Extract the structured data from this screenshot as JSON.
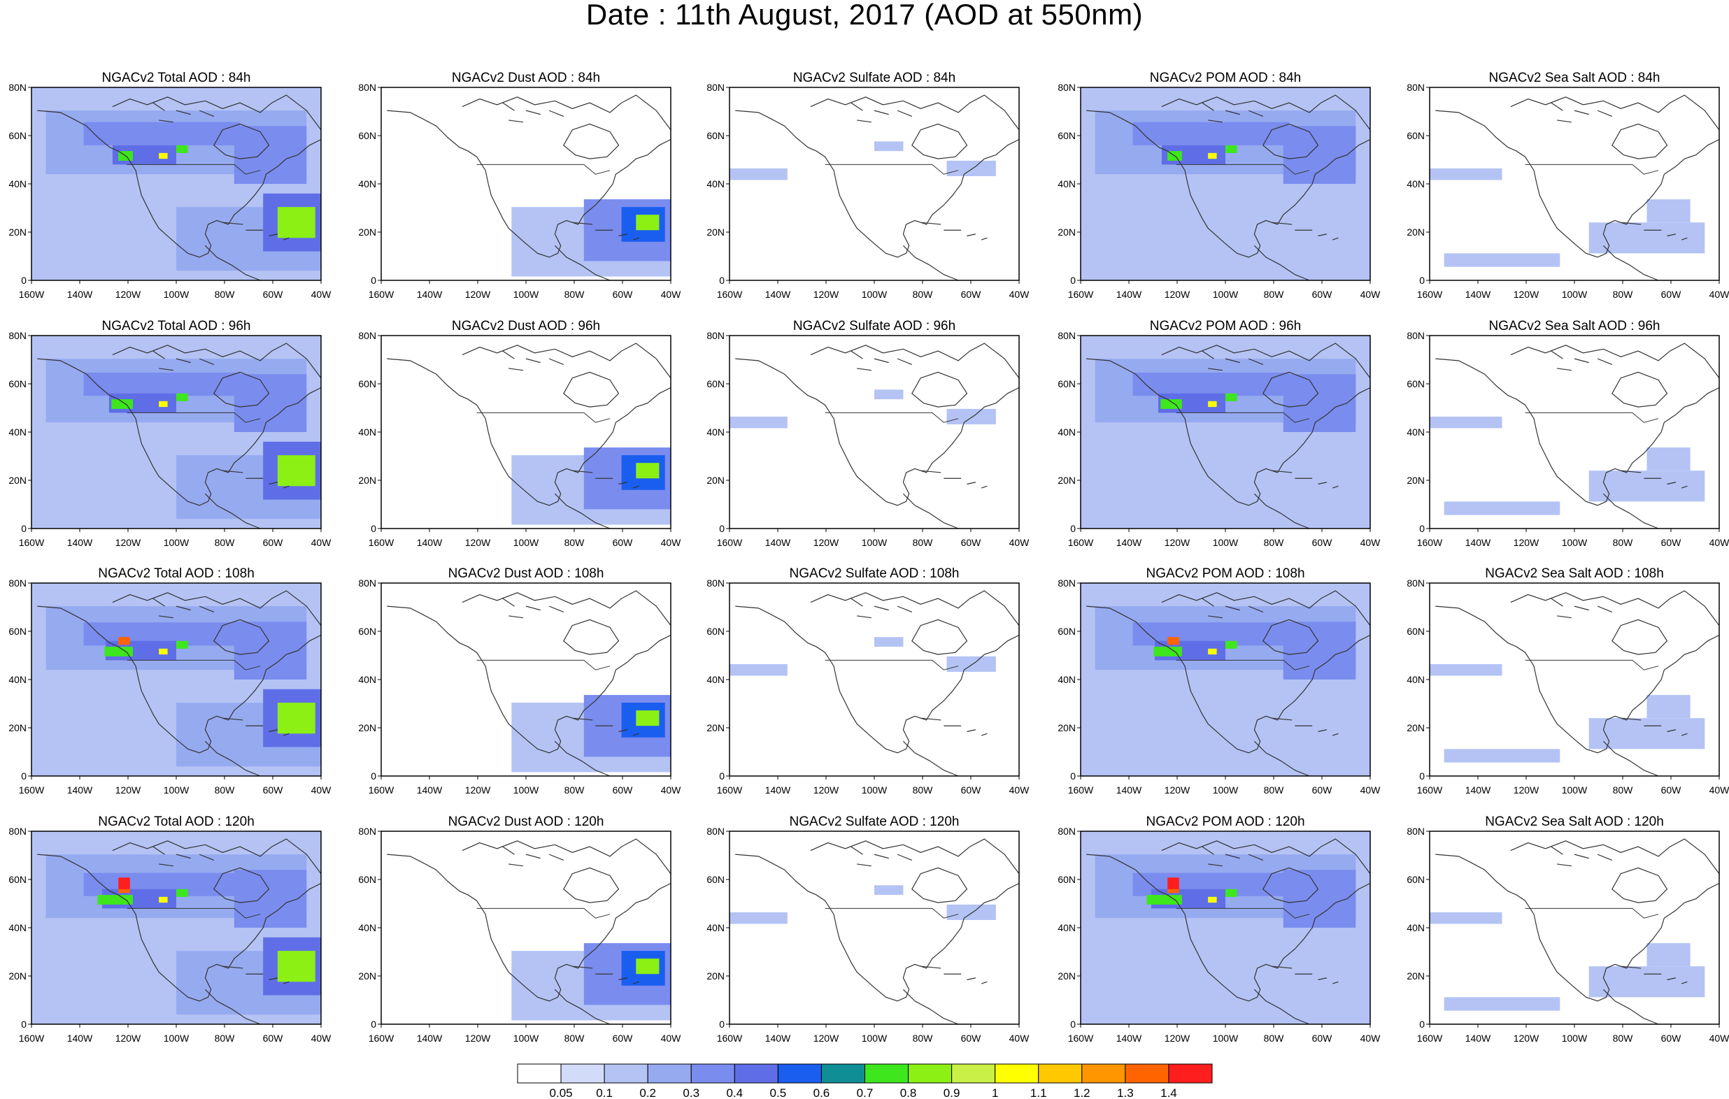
{
  "title": "Date : 11th August, 2017 (AOD at 550nm)",
  "lat_ticks": [
    "0",
    "20N",
    "40N",
    "60N",
    "80N"
  ],
  "lon_ticks": [
    "160W",
    "140W",
    "120W",
    "100W",
    "80W",
    "60W",
    "40W"
  ],
  "panels": [
    [
      "NGACv2 Total AOD : 84h",
      "NGACv2 Dust AOD : 84h",
      "NGACv2 Sulfate AOD : 84h",
      "NGACv2 POM AOD : 84h",
      "NGACv2 Sea Salt AOD : 84h"
    ],
    [
      "NGACv2 Total AOD : 96h",
      "NGACv2 Dust AOD : 96h",
      "NGACv2 Sulfate AOD : 96h",
      "NGACv2 POM AOD : 96h",
      "NGACv2 Sea Salt AOD : 96h"
    ],
    [
      "NGACv2 Total AOD : 108h",
      "NGACv2 Dust AOD : 108h",
      "NGACv2 Sulfate AOD : 108h",
      "NGACv2 POM AOD : 108h",
      "NGACv2 Sea Salt AOD : 108h"
    ],
    [
      "NGACv2 Total AOD : 120h",
      "NGACv2 Dust AOD : 120h",
      "NGACv2 Sulfate AOD : 120h",
      "NGACv2 POM AOD : 120h",
      "NGACv2 Sea Salt  AOD : 120h"
    ]
  ],
  "colorbar": {
    "labels": [
      "0.05",
      "0.1",
      "0.2",
      "0.3",
      "0.4",
      "0.5",
      "0.6",
      "0.7",
      "0.8",
      "0.9",
      "1",
      "1.1",
      "1.2",
      "1.3",
      "1.4"
    ],
    "colors": [
      "#ffffff",
      "#d2dcf8",
      "#b4c3f4",
      "#96aaf0",
      "#7a8cee",
      "#5f6ee6",
      "#1a5ef0",
      "#0f8e96",
      "#3ee61e",
      "#8cf014",
      "#c8f046",
      "#ffff00",
      "#ffc800",
      "#ff9600",
      "#ff6400",
      "#ff1e1e"
    ]
  }
}
